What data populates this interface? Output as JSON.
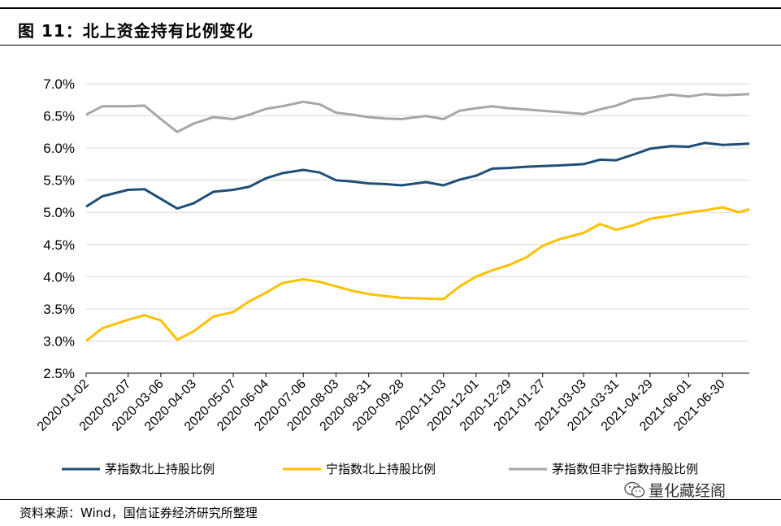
{
  "title": "图 11：北上资金持有比例变化",
  "source": "资料来源：Wind，国信证券经济研究所整理",
  "watermark": "量化藏经阁",
  "watermark_icon": "wechat-icon",
  "colors": {
    "series1": "#1f4e79",
    "series2": "#ffc000",
    "series3": "#a6a6a6",
    "grid": "#d9d9d9"
  },
  "chart_data": {
    "type": "line",
    "title": "",
    "xlabel": "",
    "ylabel": "",
    "ylim": [
      0.025,
      0.07
    ],
    "y_ticks": [
      "2.5%",
      "3.0%",
      "3.5%",
      "4.0%",
      "4.5%",
      "5.0%",
      "5.5%",
      "6.0%",
      "6.5%",
      "7.0%"
    ],
    "grid": true,
    "legend_position": "bottom",
    "x_tick_labels": [
      "2020-01-02",
      "2020-02-07",
      "2020-03-06",
      "2020-04-03",
      "2020-05-07",
      "2020-06-04",
      "2020-07-06",
      "2020-08-03",
      "2020-08-31",
      "2020-09-28",
      "2020-11-03",
      "2020-12-01",
      "2020-12-29",
      "2021-01-27",
      "2021-03-03",
      "2021-03-31",
      "2021-04-29",
      "2021-06-01",
      "2021-06-30"
    ],
    "x": [
      "2020-01-02",
      "2020-01-16",
      "2020-02-07",
      "2020-02-21",
      "2020-03-06",
      "2020-03-20",
      "2020-04-03",
      "2020-04-20",
      "2020-05-07",
      "2020-05-21",
      "2020-06-04",
      "2020-06-18",
      "2020-07-06",
      "2020-07-20",
      "2020-08-03",
      "2020-08-17",
      "2020-08-31",
      "2020-09-14",
      "2020-09-28",
      "2020-10-19",
      "2020-11-03",
      "2020-11-17",
      "2020-12-01",
      "2020-12-15",
      "2020-12-29",
      "2021-01-13",
      "2021-01-27",
      "2021-02-10",
      "2021-03-03",
      "2021-03-17",
      "2021-03-31",
      "2021-04-15",
      "2021-04-29",
      "2021-05-17",
      "2021-06-01",
      "2021-06-15",
      "2021-06-30",
      "2021-07-14",
      "2021-07-23"
    ],
    "series": [
      {
        "name": "茅指数北上持股比例",
        "color": "#1f4e79",
        "values": [
          0.0509,
          0.0525,
          0.0535,
          0.0536,
          0.0521,
          0.0506,
          0.0514,
          0.0532,
          0.0535,
          0.054,
          0.0553,
          0.0561,
          0.0566,
          0.0562,
          0.055,
          0.0548,
          0.0545,
          0.0544,
          0.0542,
          0.0547,
          0.0542,
          0.0551,
          0.0557,
          0.0568,
          0.0569,
          0.0571,
          0.0572,
          0.0573,
          0.0575,
          0.0582,
          0.0581,
          0.059,
          0.0599,
          0.0603,
          0.0602,
          0.0608,
          0.0605,
          0.0606,
          0.0607
        ]
      },
      {
        "name": "宁指数北上持股比例",
        "color": "#ffc000",
        "values": [
          0.03,
          0.032,
          0.0333,
          0.034,
          0.0332,
          0.0302,
          0.0315,
          0.0338,
          0.0345,
          0.0362,
          0.0375,
          0.039,
          0.0396,
          0.0392,
          0.0385,
          0.0378,
          0.0373,
          0.037,
          0.0367,
          0.0366,
          0.0365,
          0.0385,
          0.04,
          0.041,
          0.0418,
          0.043,
          0.0448,
          0.0458,
          0.0468,
          0.0482,
          0.0473,
          0.048,
          0.049,
          0.0495,
          0.05,
          0.0503,
          0.0508,
          0.05,
          0.0505
        ]
      },
      {
        "name": "茅指数但非宁指数持股比例",
        "color": "#a6a6a6",
        "values": [
          0.0652,
          0.0665,
          0.0665,
          0.0666,
          0.0645,
          0.0625,
          0.0638,
          0.0648,
          0.0645,
          0.0652,
          0.0661,
          0.0665,
          0.0672,
          0.0668,
          0.0655,
          0.0652,
          0.0648,
          0.0646,
          0.0645,
          0.065,
          0.0645,
          0.0658,
          0.0662,
          0.0665,
          0.0662,
          0.066,
          0.0658,
          0.0656,
          0.0653,
          0.066,
          0.0666,
          0.0676,
          0.0678,
          0.0683,
          0.068,
          0.0684,
          0.0682,
          0.0683,
          0.0684
        ]
      }
    ]
  }
}
